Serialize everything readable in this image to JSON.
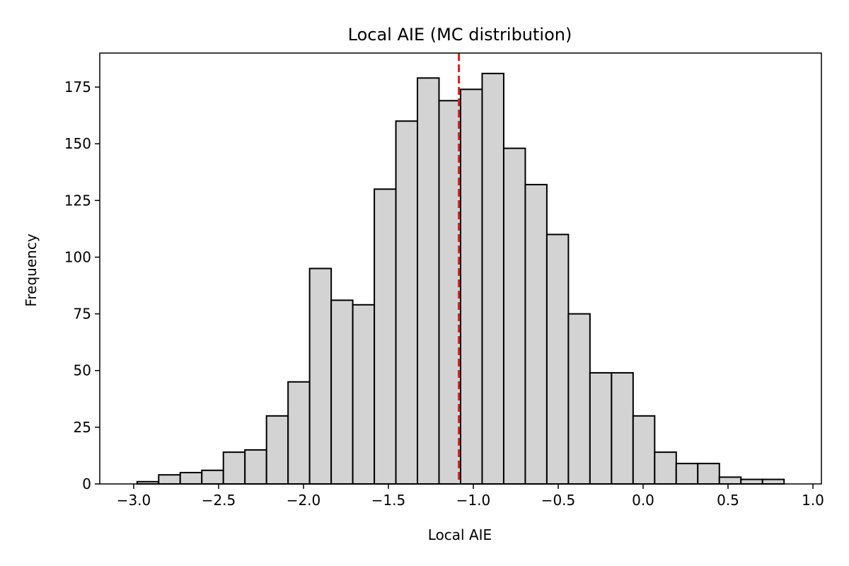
{
  "chart_data": {
    "type": "histogram",
    "title": "Local AIE (MC distribution)",
    "xlabel": "Local AIE",
    "ylabel": "Frequency",
    "xlim": [
      -3.2,
      1.05
    ],
    "ylim": [
      0,
      190
    ],
    "bin_start": -2.98,
    "bin_width": 0.127,
    "counts": [
      1,
      4,
      5,
      6,
      14,
      15,
      30,
      45,
      95,
      81,
      79,
      130,
      160,
      179,
      169,
      174,
      181,
      148,
      132,
      110,
      75,
      49,
      49,
      30,
      14,
      9,
      9,
      3,
      2,
      2
    ],
    "xticks": [
      -3.0,
      -2.5,
      -2.0,
      -1.5,
      -1.0,
      -0.5,
      0.0,
      0.5,
      1.0
    ],
    "xtick_labels": [
      "−3.0",
      "−2.5",
      "−2.0",
      "−1.5",
      "−1.0",
      "−0.5",
      "0.0",
      "0.5",
      "1.0"
    ],
    "yticks": [
      0,
      25,
      50,
      75,
      100,
      125,
      150,
      175
    ],
    "ytick_labels": [
      "0",
      "25",
      "50",
      "75",
      "100",
      "125",
      "150",
      "175"
    ],
    "bar_color": "#d3d3d3",
    "edge_color": "#000000",
    "reference_line": {
      "x": -1.085,
      "color": "#e31a1c",
      "style": "dashed"
    },
    "grid": false,
    "legend": "none"
  }
}
